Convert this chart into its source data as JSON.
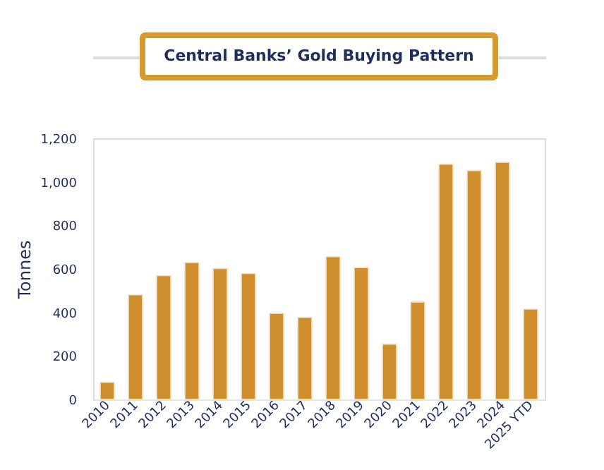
{
  "chart_data": {
    "type": "bar",
    "title": "Central Banks’ Gold Buying Pattern",
    "ylabel": "Tonnes",
    "categories": [
      "2010",
      "2011",
      "2012",
      "2013",
      "2014",
      "2015",
      "2016",
      "2017",
      "2018",
      "2019",
      "2020",
      "2021",
      "2022",
      "2023",
      "2024",
      "2025 YTD"
    ],
    "values": [
      79,
      481,
      569,
      629,
      602,
      579,
      396,
      377,
      656,
      606,
      254,
      448,
      1081,
      1052,
      1090,
      415
    ],
    "color": "#d18e2d",
    "ylim": [
      0,
      1200
    ],
    "yticks": [
      0,
      200,
      400,
      600,
      800,
      {
        "value": 1000,
        "label": "1,000"
      },
      {
        "value": 1200,
        "label": "1,200"
      }
    ],
    "grid": false
  }
}
